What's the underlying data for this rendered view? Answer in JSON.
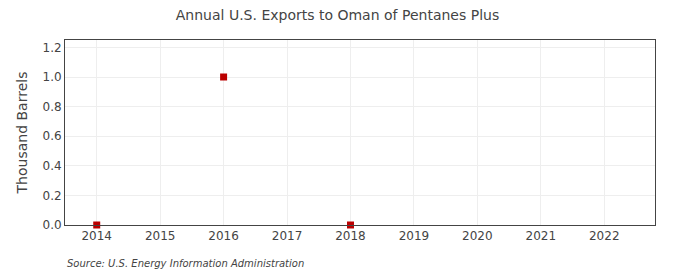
{
  "chart_data": {
    "type": "scatter",
    "title": "Annual U.S. Exports to Oman of Pentanes Plus",
    "ylabel": "Thousand Barrels",
    "annotations": [
      "Source: U.S. Energy Information Administration"
    ],
    "x": [
      2014,
      2016,
      2018
    ],
    "values": [
      0.0,
      1.0,
      0.0
    ],
    "color": "#bb0000",
    "marker": "square",
    "xlim": [
      2013.5,
      2022.8
    ],
    "xticks": [
      2014,
      2015,
      2016,
      2017,
      2018,
      2019,
      2020,
      2021,
      2022
    ],
    "ylim": [
      0.0,
      1.25
    ],
    "yticks": [
      {
        "value": 0.0,
        "label": "0.0"
      },
      0.2,
      0.4,
      0.6,
      0.8,
      {
        "value": 1.0,
        "label": "1.0"
      },
      1.2
    ],
    "grid": true
  }
}
